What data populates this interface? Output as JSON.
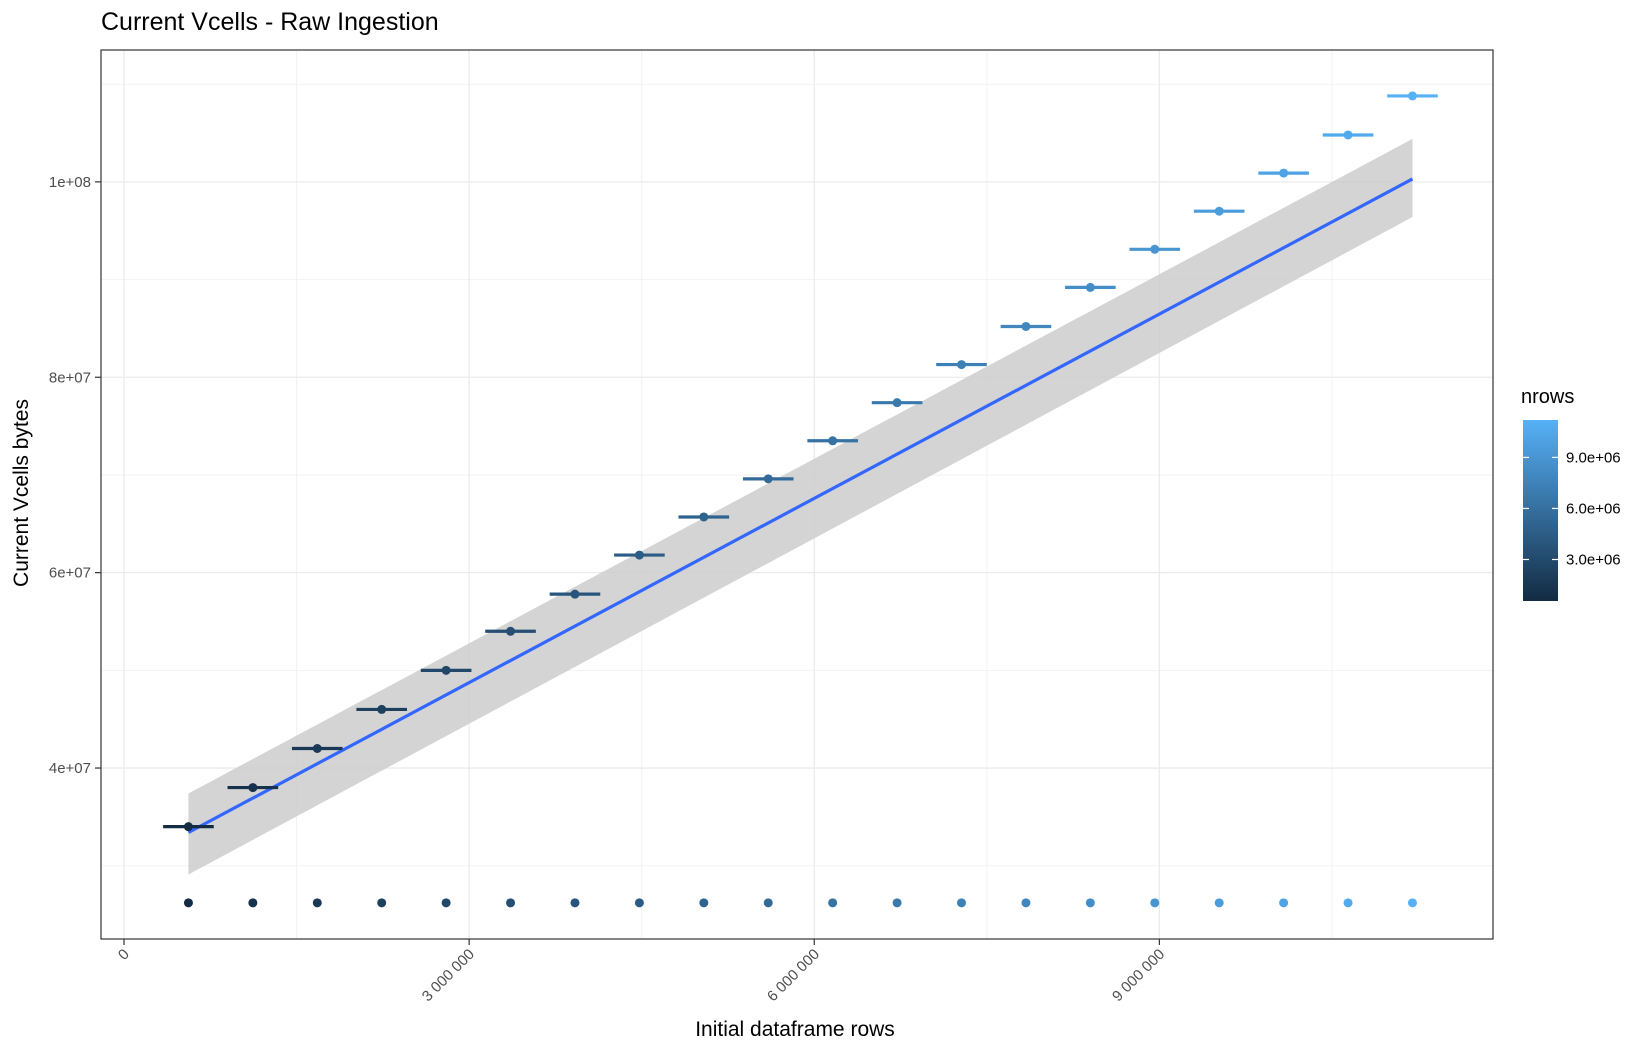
{
  "chart_data": {
    "type": "scatter",
    "title": "Current Vcells - Raw Ingestion",
    "xlabel": "Initial dataframe rows",
    "ylabel": "Current Vcells bytes",
    "xlim": [
      -200000,
      11900000
    ],
    "ylim": [
      22500000,
      113500000
    ],
    "x_ticks": [
      0,
      3000000,
      6000000,
      9000000
    ],
    "x_tick_labels": [
      "0",
      "3 000 000",
      "6 000 000",
      "9 000 000"
    ],
    "y_ticks": [
      40000000,
      60000000,
      80000000,
      100000000
    ],
    "y_tick_labels": [
      "4e+07",
      "6e+07",
      "8e+07",
      "1e+08"
    ],
    "grid": true,
    "series": [
      {
        "type": "pointrange-horizontal",
        "x": [
          560000,
          1120000,
          1680000,
          2240000,
          2800000,
          3360000,
          3920000,
          4480000,
          5040000,
          5600000,
          6160000,
          6720000,
          7280000,
          7840000,
          8400000,
          8960000,
          9520000,
          10080000,
          10640000,
          11200000
        ],
        "y": [
          34000000,
          38000000,
          42000000,
          46000000,
          50000000,
          54000000,
          57800000,
          61800000,
          65700000,
          69600000,
          73500000,
          77400000,
          81300000,
          85200000,
          89200000,
          93100000,
          97000000,
          100900000,
          104800000,
          108800000
        ],
        "x_error": 220000
      },
      {
        "type": "scatter",
        "x": [
          560000,
          1120000,
          1680000,
          2240000,
          2800000,
          3360000,
          3920000,
          4480000,
          5040000,
          5600000,
          6160000,
          6720000,
          7280000,
          7840000,
          8400000,
          8960000,
          9520000,
          10080000,
          10640000,
          11200000
        ],
        "y": [
          26200000,
          26200000,
          26200000,
          26200000,
          26200000,
          26200000,
          26200000,
          26200000,
          26200000,
          26200000,
          26200000,
          26200000,
          26200000,
          26200000,
          26200000,
          26200000,
          26200000,
          26200000,
          26200000,
          26200000
        ]
      }
    ],
    "fit": {
      "type": "linear",
      "x": [
        560000,
        11200000
      ],
      "y": [
        33400000,
        100300000
      ],
      "ci_upper": [
        37400000,
        104400000
      ],
      "ci_lower": [
        29100000,
        96400000
      ],
      "color": "#3366ff",
      "ci_color": "#cccccc"
    },
    "legend": {
      "title": "nrows",
      "position": "right",
      "breaks": [
        3000000,
        6000000,
        9000000
      ],
      "labels": [
        "3.0e+06",
        "6.0e+06",
        "9.0e+06"
      ],
      "range": [
        560000,
        11200000
      ],
      "low_color": "#132b43",
      "high_color": "#56b1f7"
    }
  }
}
